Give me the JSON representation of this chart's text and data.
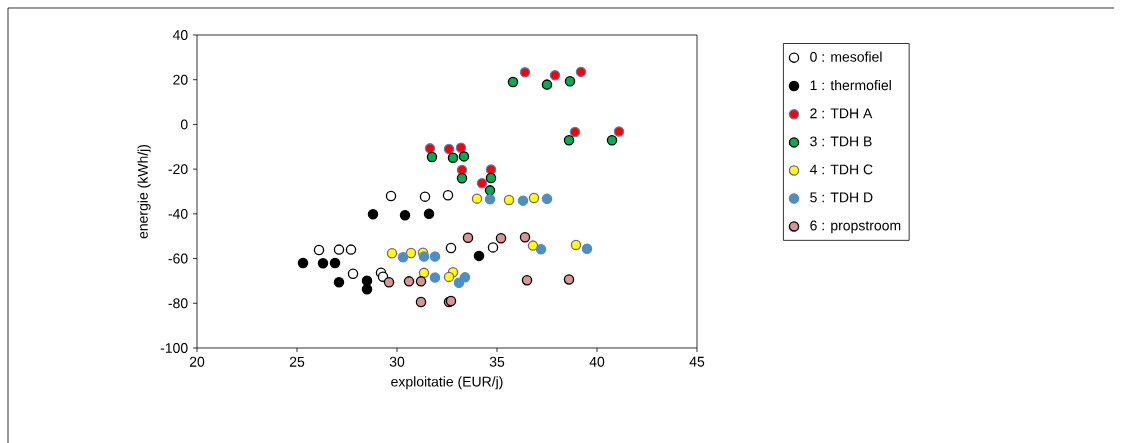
{
  "chart_data": {
    "type": "scatter",
    "xlabel": "exploitatie (EUR/j)",
    "ylabel": "energie (kWh/j)",
    "xlim": [
      20,
      45
    ],
    "xticks": [
      20,
      25,
      30,
      35,
      40,
      45
    ],
    "ylim": [
      -100,
      40
    ],
    "yticks": [
      -100,
      -80,
      -60,
      -40,
      -20,
      0,
      20,
      40
    ],
    "grid": false,
    "legend": "right",
    "series": [
      {
        "name": "0 : mesofiel",
        "color": "#ffffff",
        "x": [
          29.7,
          31.4,
          32.55,
          26.1,
          27.1,
          27.7,
          27.8,
          29.2,
          29.3,
          32.7,
          34.8
        ],
        "values": [
          -32,
          -32.3,
          -31.7,
          -56.2,
          -56,
          -56,
          -66.8,
          -66.3,
          -68.1,
          -55.3,
          -55
        ]
      },
      {
        "name": "1 : thermofiel",
        "color": "#000000",
        "x": [
          28.8,
          30.4,
          31.6,
          25.3,
          26.3,
          26.9,
          27.1,
          28.5,
          28.5,
          34.1
        ],
        "values": [
          -40.2,
          -40.6,
          -40,
          -62,
          -62.1,
          -62,
          -70.6,
          -69.9,
          -73.7,
          -58.8
        ]
      },
      {
        "name": "2 : TDH A",
        "color": "#ff0000",
        "x": [
          36.4,
          37.9,
          39.2,
          38.9,
          41.1,
          31.65,
          32.6,
          33.2,
          33.25,
          34.7,
          34.25
        ],
        "values": [
          23.3,
          22,
          23.5,
          -3.4,
          -3.2,
          -10.7,
          -11,
          -10.4,
          -20.4,
          -20.2,
          -26.3
        ]
      },
      {
        "name": "3 : TDH B",
        "color": "#00b050",
        "x": [
          35.8,
          37.5,
          38.65,
          38.6,
          40.75,
          31.75,
          32.8,
          33.35,
          33.25,
          34.7,
          34.65
        ],
        "values": [
          19,
          17.8,
          19.3,
          -7.1,
          -7.1,
          -14.6,
          -14.9,
          -14.3,
          -24.1,
          -24,
          -29.5
        ]
      },
      {
        "name": "4 : TDH C",
        "color": "#ffff00",
        "x": [
          34.0,
          35.6,
          36.85,
          36.8,
          38.95,
          29.75,
          30.7,
          31.3,
          31.35,
          32.8,
          32.6
        ],
        "values": [
          -33.2,
          -33.8,
          -32.9,
          -54.2,
          -53.9,
          -57.6,
          -57.5,
          -57.4,
          -66.4,
          -66.1,
          -68.2
        ]
      },
      {
        "name": "5 : TDH D",
        "color": "#4f8fbf",
        "x": [
          34.65,
          36.3,
          37.5,
          37.2,
          39.5,
          31.9,
          33.1,
          33.4,
          31.9,
          31.35,
          30.3
        ],
        "values": [
          -33.5,
          -34.1,
          -33.3,
          -55.8,
          -55.6,
          -68.5,
          -70.8,
          -68.4,
          -59.1,
          -59.1,
          -59.4
        ]
      },
      {
        "name": "6 : propstroom",
        "color": "#d99594",
        "x": [
          29.6,
          30.6,
          31.2,
          31.2,
          33.55,
          35.2,
          36.4,
          36.5,
          38.6,
          32.6,
          32.7
        ],
        "values": [
          -70.6,
          -70.2,
          -70.2,
          -79.4,
          -50.7,
          -50.9,
          -50.5,
          -69.7,
          -69.4,
          -79.4,
          -79
        ]
      }
    ]
  }
}
